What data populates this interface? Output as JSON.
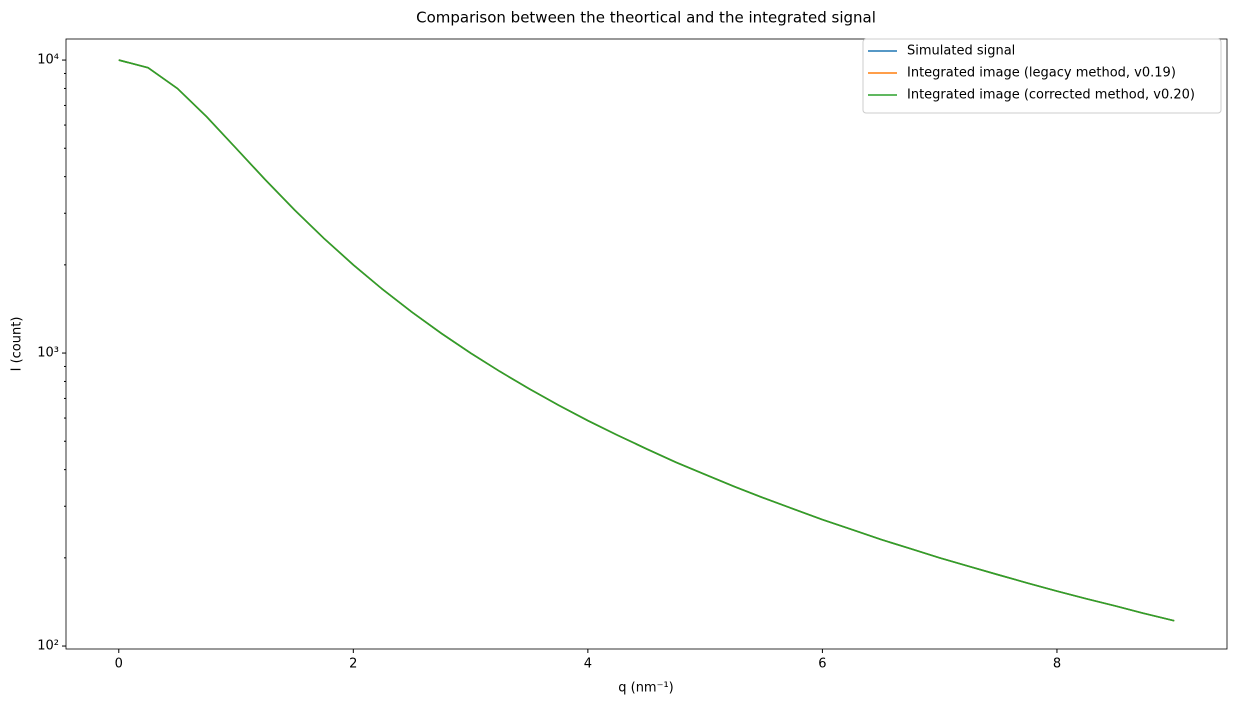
{
  "chart_data": {
    "type": "line",
    "title": "Comparison between the theortical and the integrated signal",
    "x_label": "q (nm⁻¹)",
    "y_label": "I (count)",
    "yscale": "log",
    "legend": "upper right",
    "x": [
      0,
      0.25,
      0.5,
      0.75,
      1,
      1.25,
      1.5,
      1.75,
      2,
      2.25,
      2.5,
      2.75,
      3,
      3.25,
      3.5,
      3.75,
      4,
      4.25,
      4.5,
      4.75,
      5,
      5.25,
      5.5,
      5.75,
      6,
      6.25,
      6.5,
      6.75,
      7,
      7.25,
      7.5,
      7.75,
      8,
      8.25,
      8.5,
      8.75,
      9
    ],
    "series": [
      {
        "name": "Simulated signal",
        "color": "#1f77b4",
        "values": [
          10000,
          9412,
          8000,
          6400,
          5000,
          3902,
          3077,
          2462,
          2000,
          1649,
          1379,
          1168,
          1000,
          865,
          755,
          664,
          588,
          525,
          471,
          424,
          385,
          350,
          320,
          294,
          270,
          250,
          231,
          215,
          200,
          187,
          175,
          164,
          154,
          145,
          137,
          129,
          122
        ]
      },
      {
        "name": "Integrated image (legacy method, v0.19)",
        "color": "#ff7f0e",
        "values": [
          10000,
          9412,
          8000,
          6400,
          5000,
          3902,
          3077,
          2462,
          2000,
          1649,
          1379,
          1168,
          1000,
          865,
          755,
          664,
          588,
          525,
          471,
          424,
          385,
          350,
          320,
          294,
          270,
          250,
          231,
          215,
          200,
          187,
          175,
          164,
          154,
          145,
          137,
          129,
          122
        ]
      },
      {
        "name": "Integrated image (corrected method, v0.20)",
        "color": "#2ca02c",
        "values": [
          10000,
          9412,
          8000,
          6400,
          5000,
          3902,
          3077,
          2462,
          2000,
          1649,
          1379,
          1168,
          1000,
          865,
          755,
          664,
          588,
          525,
          471,
          424,
          385,
          350,
          320,
          294,
          270,
          250,
          231,
          215,
          200,
          187,
          175,
          164,
          154,
          145,
          137,
          129,
          122
        ]
      }
    ],
    "xlim": [
      -0.45,
      9.45
    ],
    "ylim": [
      97.7,
      11800
    ],
    "xticks": [
      0,
      2,
      4,
      6,
      8
    ],
    "yticks": [
      {
        "value": 100,
        "label": "10²"
      },
      {
        "value": 1000,
        "label": "10³"
      },
      {
        "value": 10000,
        "label": "10⁴"
      }
    ],
    "yminorticks": [
      200,
      300,
      400,
      500,
      600,
      700,
      800,
      900,
      2000,
      3000,
      4000,
      5000,
      6000,
      7000,
      8000,
      9000
    ]
  }
}
